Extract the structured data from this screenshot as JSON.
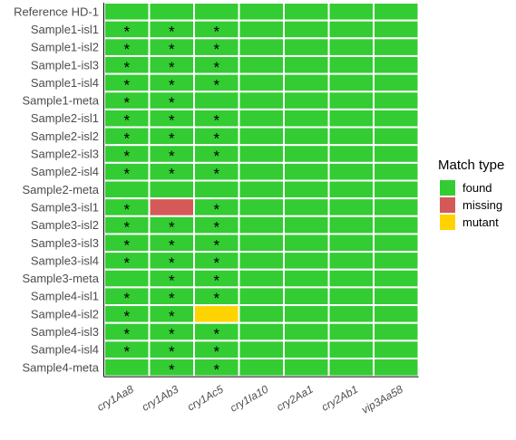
{
  "chart_data": {
    "type": "heatmap",
    "x_categories": [
      "cry1Aa8",
      "cry1Ab3",
      "cry1Ac5",
      "cry1Ia10",
      "cry2Aa1",
      "cry2Ab1",
      "vip3Aa58"
    ],
    "y_categories": [
      "Reference HD-1",
      "Sample1-isl1",
      "Sample1-isl2",
      "Sample1-isl3",
      "Sample1-isl4",
      "Sample1-meta",
      "Sample2-isl1",
      "Sample2-isl2",
      "Sample2-isl3",
      "Sample2-isl4",
      "Sample2-meta",
      "Sample3-isl1",
      "Sample3-isl2",
      "Sample3-isl3",
      "Sample3-isl4",
      "Sample3-meta",
      "Sample4-isl1",
      "Sample4-isl2",
      "Sample4-isl3",
      "Sample4-isl4",
      "Sample4-meta"
    ],
    "cells": [
      [
        "found",
        "found",
        "found",
        "found",
        "found",
        "found",
        "found"
      ],
      [
        "found",
        "found",
        "found",
        "found",
        "found",
        "found",
        "found"
      ],
      [
        "found",
        "found",
        "found",
        "found",
        "found",
        "found",
        "found"
      ],
      [
        "found",
        "found",
        "found",
        "found",
        "found",
        "found",
        "found"
      ],
      [
        "found",
        "found",
        "found",
        "found",
        "found",
        "found",
        "found"
      ],
      [
        "found",
        "found",
        "found",
        "found",
        "found",
        "found",
        "found"
      ],
      [
        "found",
        "found",
        "found",
        "found",
        "found",
        "found",
        "found"
      ],
      [
        "found",
        "found",
        "found",
        "found",
        "found",
        "found",
        "found"
      ],
      [
        "found",
        "found",
        "found",
        "found",
        "found",
        "found",
        "found"
      ],
      [
        "found",
        "found",
        "found",
        "found",
        "found",
        "found",
        "found"
      ],
      [
        "found",
        "found",
        "found",
        "found",
        "found",
        "found",
        "found"
      ],
      [
        "found",
        "missing",
        "found",
        "found",
        "found",
        "found",
        "found"
      ],
      [
        "found",
        "found",
        "found",
        "found",
        "found",
        "found",
        "found"
      ],
      [
        "found",
        "found",
        "found",
        "found",
        "found",
        "found",
        "found"
      ],
      [
        "found",
        "found",
        "found",
        "found",
        "found",
        "found",
        "found"
      ],
      [
        "found",
        "found",
        "found",
        "found",
        "found",
        "found",
        "found"
      ],
      [
        "found",
        "found",
        "found",
        "found",
        "found",
        "found",
        "found"
      ],
      [
        "found",
        "found",
        "mutant",
        "found",
        "found",
        "found",
        "found"
      ],
      [
        "found",
        "found",
        "found",
        "found",
        "found",
        "found",
        "found"
      ],
      [
        "found",
        "found",
        "found",
        "found",
        "found",
        "found",
        "found"
      ],
      [
        "found",
        "found",
        "found",
        "found",
        "found",
        "found",
        "found"
      ]
    ],
    "stars": [
      [
        0,
        0,
        0,
        0,
        0,
        0,
        0
      ],
      [
        1,
        1,
        1,
        0,
        0,
        0,
        0
      ],
      [
        1,
        1,
        1,
        0,
        0,
        0,
        0
      ],
      [
        1,
        1,
        1,
        0,
        0,
        0,
        0
      ],
      [
        1,
        1,
        1,
        0,
        0,
        0,
        0
      ],
      [
        1,
        1,
        0,
        0,
        0,
        0,
        0
      ],
      [
        1,
        1,
        1,
        0,
        0,
        0,
        0
      ],
      [
        1,
        1,
        1,
        0,
        0,
        0,
        0
      ],
      [
        1,
        1,
        1,
        0,
        0,
        0,
        0
      ],
      [
        1,
        1,
        1,
        0,
        0,
        0,
        0
      ],
      [
        0,
        0,
        0,
        0,
        0,
        0,
        0
      ],
      [
        1,
        0,
        1,
        0,
        0,
        0,
        0
      ],
      [
        1,
        1,
        1,
        0,
        0,
        0,
        0
      ],
      [
        1,
        1,
        1,
        0,
        0,
        0,
        0
      ],
      [
        1,
        1,
        1,
        0,
        0,
        0,
        0
      ],
      [
        0,
        1,
        1,
        0,
        0,
        0,
        0
      ],
      [
        1,
        1,
        1,
        0,
        0,
        0,
        0
      ],
      [
        1,
        1,
        0,
        0,
        0,
        0,
        0
      ],
      [
        1,
        1,
        1,
        0,
        0,
        0,
        0
      ],
      [
        1,
        1,
        1,
        0,
        0,
        0,
        0
      ],
      [
        0,
        1,
        1,
        0,
        0,
        0,
        0
      ]
    ],
    "star_symbol": "*",
    "legend": {
      "title": "Match type",
      "placement": "right",
      "items": [
        {
          "label": "found",
          "color": "#33CC33"
        },
        {
          "label": "missing",
          "color": "#D45A59"
        },
        {
          "label": "mutant",
          "color": "#FFD300"
        }
      ]
    },
    "title": "",
    "xlabel": "",
    "ylabel": "",
    "grid": false
  }
}
